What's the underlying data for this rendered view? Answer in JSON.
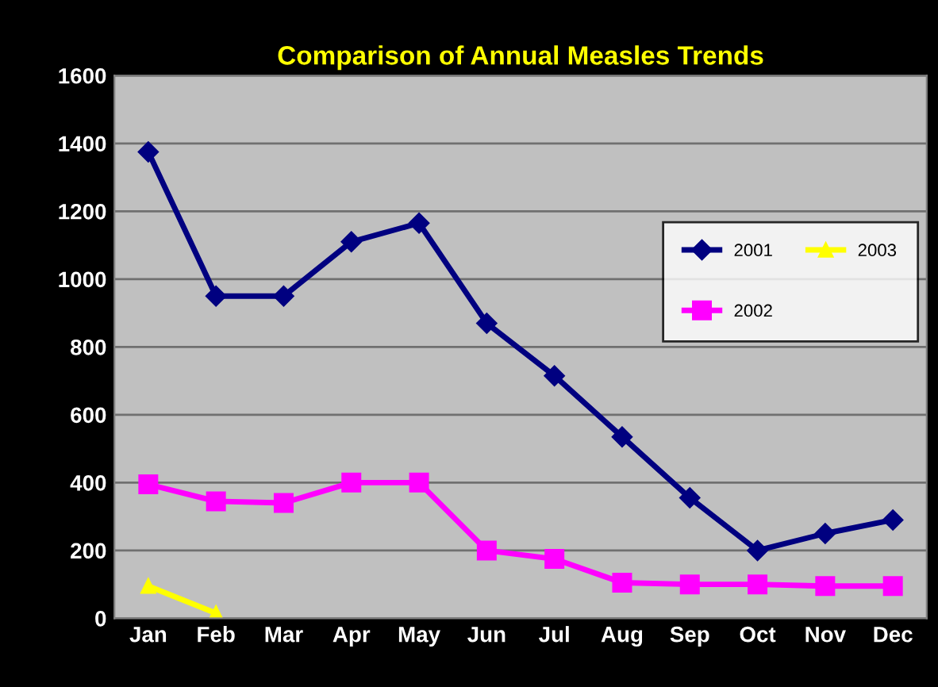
{
  "chart_data": {
    "type": "line",
    "title": "Comparison of Annual Measles Trends",
    "categories": [
      "Jan",
      "Feb",
      "Mar",
      "Apr",
      "May",
      "Jun",
      "Jul",
      "Aug",
      "Sep",
      "Oct",
      "Nov",
      "Dec"
    ],
    "series": [
      {
        "name": "2001",
        "color": "#000080",
        "marker": "diamond",
        "values": [
          1375,
          950,
          950,
          1110,
          1165,
          870,
          715,
          535,
          355,
          200,
          250,
          290
        ]
      },
      {
        "name": "2002",
        "color": "#ff00ff",
        "marker": "square",
        "values": [
          395,
          345,
          340,
          400,
          400,
          200,
          175,
          105,
          100,
          100,
          95,
          95
        ]
      },
      {
        "name": "2003",
        "color": "#ffff00",
        "marker": "triangle",
        "values": [
          95,
          15,
          null,
          null,
          null,
          null,
          null,
          null,
          null,
          null,
          null,
          null
        ]
      }
    ],
    "ylim": [
      0,
      1600
    ],
    "yticks": [
      0,
      200,
      400,
      600,
      800,
      1000,
      1200,
      1400,
      1600
    ],
    "grid": "y",
    "legend": "right",
    "line_style": "solid"
  }
}
